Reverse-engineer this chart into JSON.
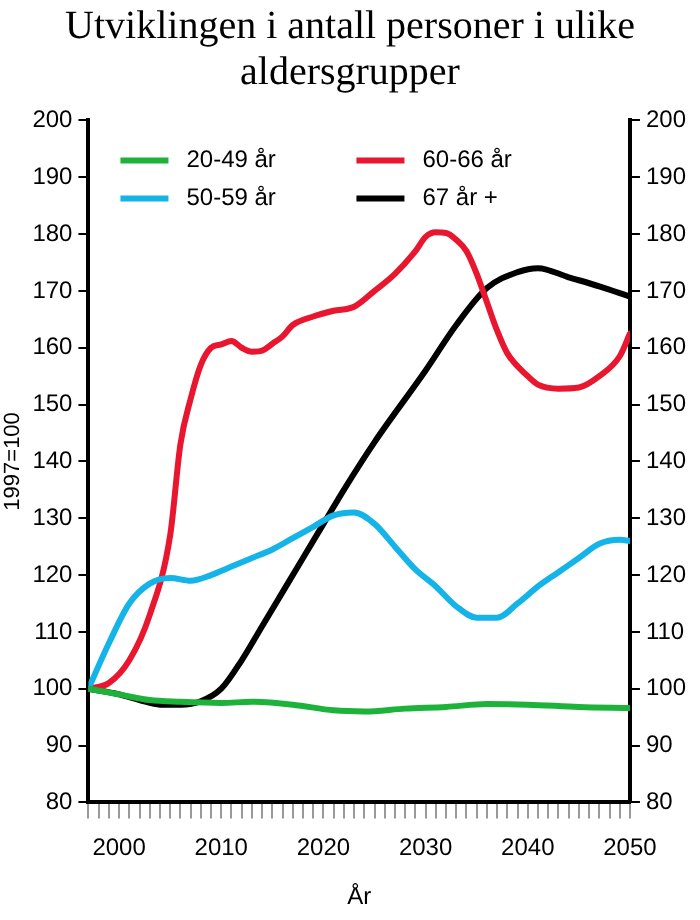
{
  "chart_data": {
    "type": "line",
    "title": "Utviklingen i antall personer i ulike aldersgrupper",
    "xlabel": "År",
    "ylabel": "1997=100",
    "xlim": [
      1997,
      2050
    ],
    "xticks": [
      {
        "value": 1997,
        "label": null
      },
      {
        "value": 1998,
        "label": null
      },
      {
        "value": 1999,
        "label": null
      },
      2000,
      {
        "value": 2001,
        "label": null
      },
      {
        "value": 2002,
        "label": null
      },
      {
        "value": 2003,
        "label": null
      },
      {
        "value": 2004,
        "label": null
      },
      {
        "value": 2005,
        "label": null
      },
      {
        "value": 2006,
        "label": null
      },
      {
        "value": 2007,
        "label": null
      },
      {
        "value": 2008,
        "label": null
      },
      {
        "value": 2009,
        "label": null
      },
      2010,
      {
        "value": 2011,
        "label": null
      },
      {
        "value": 2012,
        "label": null
      },
      {
        "value": 2013,
        "label": null
      },
      {
        "value": 2014,
        "label": null
      },
      {
        "value": 2015,
        "label": null
      },
      {
        "value": 2016,
        "label": null
      },
      {
        "value": 2017,
        "label": null
      },
      {
        "value": 2018,
        "label": null
      },
      {
        "value": 2019,
        "label": null
      },
      2020,
      {
        "value": 2021,
        "label": null
      },
      {
        "value": 2022,
        "label": null
      },
      {
        "value": 2023,
        "label": null
      },
      {
        "value": 2024,
        "label": null
      },
      {
        "value": 2025,
        "label": null
      },
      {
        "value": 2026,
        "label": null
      },
      {
        "value": 2027,
        "label": null
      },
      {
        "value": 2028,
        "label": null
      },
      {
        "value": 2029,
        "label": null
      },
      2030,
      {
        "value": 2031,
        "label": null
      },
      {
        "value": 2032,
        "label": null
      },
      {
        "value": 2033,
        "label": null
      },
      {
        "value": 2034,
        "label": null
      },
      {
        "value": 2035,
        "label": null
      },
      {
        "value": 2036,
        "label": null
      },
      {
        "value": 2037,
        "label": null
      },
      {
        "value": 2038,
        "label": null
      },
      {
        "value": 2039,
        "label": null
      },
      2040,
      {
        "value": 2041,
        "label": null
      },
      {
        "value": 2042,
        "label": null
      },
      {
        "value": 2043,
        "label": null
      },
      {
        "value": 2044,
        "label": null
      },
      {
        "value": 2045,
        "label": null
      },
      {
        "value": 2046,
        "label": null
      },
      {
        "value": 2047,
        "label": null
      },
      {
        "value": 2048,
        "label": null
      },
      {
        "value": 2049,
        "label": null
      },
      2050
    ],
    "ylim": [
      80,
      200
    ],
    "yticks": [
      80,
      90,
      100,
      110,
      120,
      130,
      140,
      150,
      160,
      170,
      180,
      190,
      200
    ],
    "y2lim": [
      80,
      200
    ],
    "y2ticks": [
      80,
      90,
      100,
      110,
      120,
      130,
      140,
      150,
      160,
      170,
      180,
      190,
      200
    ],
    "grid": false,
    "legend": "top left",
    "marker": "none",
    "line_style": "solid",
    "series": [
      {
        "name": "20-49 år",
        "color": "#1db33a",
        "x": [
          1997,
          2000,
          2003,
          2006,
          2010,
          2013,
          2017,
          2021,
          2024,
          2028,
          2032,
          2036,
          2040,
          2045,
          2050
        ],
        "values": [
          100,
          99,
          98,
          97.7,
          97.5,
          97.7,
          97.2,
          96.2,
          96,
          96.5,
          96.8,
          97.3,
          97.2,
          96.8,
          96.6
        ]
      },
      {
        "name": "50-59 år",
        "color": "#14b4e8",
        "x": [
          1997,
          1999,
          2001,
          2003,
          2005,
          2007,
          2009,
          2011,
          2013,
          2015,
          2017,
          2019,
          2021,
          2023,
          2025,
          2027,
          2029,
          2031,
          2033,
          2035,
          2037,
          2039,
          2041,
          2043,
          2045,
          2047,
          2049,
          2050
        ],
        "values": [
          100,
          108,
          115,
          118.5,
          119.5,
          119,
          120,
          121.5,
          123,
          124.5,
          126.5,
          128.5,
          130.5,
          131,
          129,
          125,
          121,
          118,
          114.5,
          112.5,
          112.5,
          115,
          118,
          120.5,
          123,
          125.5,
          126.2,
          126
        ]
      },
      {
        "name": "60-66 år",
        "color": "#e8162e",
        "x": [
          1997,
          1999,
          2001,
          2003,
          2005,
          2006,
          2007,
          2008,
          2009,
          2010,
          2011,
          2012,
          2013,
          2014,
          2015,
          2016,
          2017,
          2019,
          2021,
          2023,
          2025,
          2027,
          2029,
          2030,
          2031,
          2032,
          2033,
          2034,
          2035,
          2036,
          2037,
          2038,
          2040,
          2041,
          2043,
          2045,
          2047,
          2049,
          2050
        ],
        "values": [
          100,
          101,
          105,
          113,
          127,
          143,
          151,
          157,
          160,
          160.6,
          161.2,
          160,
          159.3,
          159.5,
          160.7,
          162,
          164,
          165.5,
          166.5,
          167.2,
          170,
          173,
          177,
          179.5,
          180.3,
          180.2,
          179,
          177,
          173,
          168,
          163,
          159,
          155,
          153.5,
          152.8,
          153,
          155,
          158.5,
          162.5
        ]
      },
      {
        "name": "67 år +",
        "color": "#000000",
        "x": [
          1997,
          2000,
          2002,
          2004,
          2006,
          2008,
          2010,
          2012,
          2014,
          2016,
          2018,
          2020,
          2022,
          2025,
          2030,
          2033,
          2036,
          2039,
          2041,
          2044,
          2047,
          2050
        ],
        "values": [
          100,
          99,
          98,
          97.2,
          97.2,
          97.8,
          100,
          105,
          111,
          117,
          123,
          129,
          135,
          143.4,
          156,
          164,
          170.5,
          173.3,
          174,
          172.4,
          170.8,
          169
        ]
      }
    ]
  }
}
